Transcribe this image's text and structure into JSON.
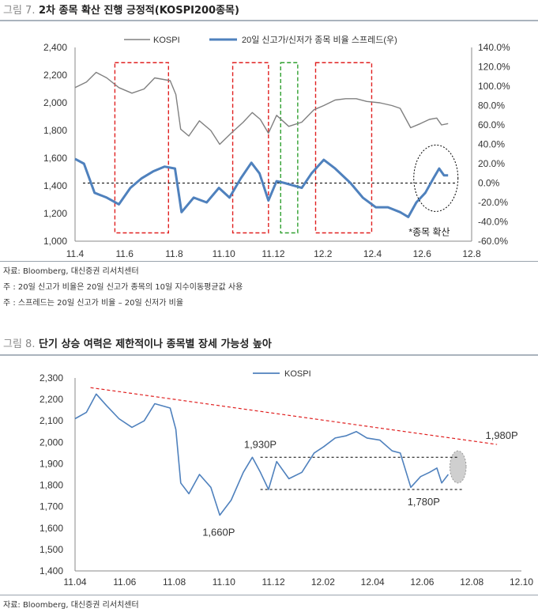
{
  "figure1": {
    "label": "그림 7.",
    "title": "2차 종목 확산 진행 긍정적(KOSPI200종목)",
    "notes": [
      "자료: Bloomberg, 대신증권 리서치센터",
      "주 : 20일 신고가 비율은 20일 신고가 종목의 10일 지수이동평균값 사용",
      "주 : 스프레드는 20일 신고가 비율 – 20일 신저가 비율"
    ]
  },
  "figure2": {
    "label": "그림 8.",
    "title": "단기 상승 여력은 제한적이나 종목별 장세 가능성 높아",
    "notes": [
      "자료: Bloomberg, 대신증권 리서치센터"
    ]
  },
  "chart_data": [
    {
      "type": "line",
      "title": "",
      "x_ticks": [
        "11.4",
        "11.6",
        "11.8",
        "11.10",
        "11.12",
        "12.2",
        "12.4",
        "12.6",
        "12.8"
      ],
      "y_ticks": [
        "1,000",
        "1,200",
        "1,400",
        "1,600",
        "1,800",
        "2,000",
        "2,200",
        "2,400"
      ],
      "y_range": [
        1000,
        2400
      ],
      "y2_ticks": [
        "-60.0%",
        "-40.0%",
        "-20.0%",
        "0.0%",
        "20.0%",
        "40.0%",
        "60.0%",
        "80.0%",
        "100.0%",
        "120.0%",
        "140.0%"
      ],
      "y2_range": [
        -60,
        140
      ],
      "legend_placement": "top",
      "series": [
        {
          "name": "KOSPI",
          "axis": "left",
          "color": "#808080",
          "points": [
            [
              "2011-04-01",
              2110
            ],
            [
              "2011-04-15",
              2150
            ],
            [
              "2011-04-27",
              2220
            ],
            [
              "2011-05-10",
              2180
            ],
            [
              "2011-05-25",
              2110
            ],
            [
              "2011-06-10",
              2070
            ],
            [
              "2011-06-25",
              2100
            ],
            [
              "2011-07-08",
              2180
            ],
            [
              "2011-07-27",
              2160
            ],
            [
              "2011-08-03",
              2060
            ],
            [
              "2011-08-09",
              1810
            ],
            [
              "2011-08-19",
              1760
            ],
            [
              "2011-09-01",
              1870
            ],
            [
              "2011-09-15",
              1800
            ],
            [
              "2011-09-26",
              1700
            ],
            [
              "2011-10-10",
              1780
            ],
            [
              "2011-10-25",
              1860
            ],
            [
              "2011-11-05",
              1930
            ],
            [
              "2011-11-15",
              1880
            ],
            [
              "2011-11-25",
              1780
            ],
            [
              "2011-12-05",
              1910
            ],
            [
              "2011-12-20",
              1830
            ],
            [
              "2012-01-05",
              1860
            ],
            [
              "2012-01-20",
              1950
            ],
            [
              "2012-02-01",
              1980
            ],
            [
              "2012-02-15",
              2020
            ],
            [
              "2012-02-28",
              2030
            ],
            [
              "2012-03-12",
              2030
            ],
            [
              "2012-03-25",
              2010
            ],
            [
              "2012-04-10",
              2000
            ],
            [
              "2012-04-25",
              1980
            ],
            [
              "2012-05-05",
              1960
            ],
            [
              "2012-05-18",
              1820
            ],
            [
              "2012-05-30",
              1850
            ],
            [
              "2012-06-10",
              1880
            ],
            [
              "2012-06-19",
              1890
            ],
            [
              "2012-06-25",
              1840
            ],
            [
              "2012-07-03",
              1850
            ]
          ]
        },
        {
          "name": "20일 신고가/신저가 종목 비율 스프레드(우)",
          "axis": "right",
          "color": "#4f81bd",
          "points": [
            [
              "2011-04-01",
              25
            ],
            [
              "2011-04-12",
              20
            ],
            [
              "2011-04-25",
              -10
            ],
            [
              "2011-05-10",
              -15
            ],
            [
              "2011-05-25",
              -22
            ],
            [
              "2011-06-08",
              -5
            ],
            [
              "2011-06-22",
              5
            ],
            [
              "2011-07-06",
              12
            ],
            [
              "2011-07-20",
              17
            ],
            [
              "2011-08-02",
              15
            ],
            [
              "2011-08-10",
              -30
            ],
            [
              "2011-08-25",
              -15
            ],
            [
              "2011-09-10",
              -20
            ],
            [
              "2011-09-25",
              -5
            ],
            [
              "2011-10-08",
              -15
            ],
            [
              "2011-10-22",
              5
            ],
            [
              "2011-11-04",
              21
            ],
            [
              "2011-11-14",
              10
            ],
            [
              "2011-11-25",
              -18
            ],
            [
              "2011-12-05",
              2
            ],
            [
              "2011-12-15",
              0
            ],
            [
              "2012-01-05",
              -5
            ],
            [
              "2012-01-17",
              10
            ],
            [
              "2012-02-01",
              24
            ],
            [
              "2012-02-15",
              15
            ],
            [
              "2012-03-05",
              0
            ],
            [
              "2012-03-20",
              -15
            ],
            [
              "2012-04-05",
              -25
            ],
            [
              "2012-04-20",
              -25
            ],
            [
              "2012-05-05",
              -30
            ],
            [
              "2012-05-15",
              -35
            ],
            [
              "2012-05-25",
              -20
            ],
            [
              "2012-06-05",
              -10
            ],
            [
              "2012-06-15",
              5
            ],
            [
              "2012-06-22",
              15
            ],
            [
              "2012-06-28",
              8
            ],
            [
              "2012-07-03",
              8
            ]
          ]
        }
      ],
      "reference_lines": [
        {
          "axis": "right",
          "value": 0,
          "style": "dashed"
        }
      ],
      "highlight_boxes": [
        {
          "from": "2011-05-20",
          "to": "2011-07-25",
          "color": "#e02020"
        },
        {
          "from": "2011-10-12",
          "to": "2011-11-25",
          "color": "#e02020"
        },
        {
          "from": "2011-12-10",
          "to": "2011-12-31",
          "color": "#30a030"
        },
        {
          "from": "2012-01-22",
          "to": "2012-03-31",
          "color": "#e02020"
        }
      ],
      "annotations": [
        {
          "text": "*종목 확산",
          "note": "dotted ellipse around recent spread rise"
        }
      ]
    },
    {
      "type": "line",
      "title": "",
      "x_ticks": [
        "11.04",
        "11.06",
        "11.08",
        "11.10",
        "11.12",
        "12.02",
        "12.04",
        "12.06",
        "12.08",
        "12.10"
      ],
      "y_ticks": [
        "1,400",
        "1,500",
        "1,600",
        "1,700",
        "1,800",
        "1,900",
        "2,000",
        "2,100",
        "2,200",
        "2,300"
      ],
      "y_range": [
        1400,
        2300
      ],
      "legend_placement": "top",
      "series": [
        {
          "name": "KOSPI",
          "color": "#4f81bd",
          "points": [
            [
              "2011-04-01",
              2110
            ],
            [
              "2011-04-15",
              2140
            ],
            [
              "2011-04-27",
              2225
            ],
            [
              "2011-05-10",
              2170
            ],
            [
              "2011-05-25",
              2110
            ],
            [
              "2011-06-10",
              2070
            ],
            [
              "2011-06-25",
              2100
            ],
            [
              "2011-07-08",
              2180
            ],
            [
              "2011-07-27",
              2160
            ],
            [
              "2011-08-03",
              2060
            ],
            [
              "2011-08-09",
              1810
            ],
            [
              "2011-08-19",
              1760
            ],
            [
              "2011-09-01",
              1850
            ],
            [
              "2011-09-15",
              1790
            ],
            [
              "2011-09-26",
              1660
            ],
            [
              "2011-10-10",
              1730
            ],
            [
              "2011-10-25",
              1860
            ],
            [
              "2011-11-05",
              1930
            ],
            [
              "2011-11-15",
              1860
            ],
            [
              "2011-11-25",
              1780
            ],
            [
              "2011-12-05",
              1910
            ],
            [
              "2011-12-20",
              1830
            ],
            [
              "2012-01-05",
              1860
            ],
            [
              "2012-01-20",
              1950
            ],
            [
              "2012-02-01",
              1980
            ],
            [
              "2012-02-15",
              2020
            ],
            [
              "2012-02-28",
              2030
            ],
            [
              "2012-03-12",
              2050
            ],
            [
              "2012-03-25",
              2020
            ],
            [
              "2012-04-10",
              2010
            ],
            [
              "2012-04-25",
              1960
            ],
            [
              "2012-05-05",
              1950
            ],
            [
              "2012-05-18",
              1790
            ],
            [
              "2012-05-30",
              1840
            ],
            [
              "2012-06-10",
              1860
            ],
            [
              "2012-06-19",
              1880
            ],
            [
              "2012-06-25",
              1810
            ],
            [
              "2012-07-03",
              1850
            ]
          ]
        }
      ],
      "trend_line": {
        "from": [
          "2011-04-20",
          2255
        ],
        "to": [
          "2012-09-01",
          1990
        ],
        "color": "#e02020",
        "style": "dashed"
      },
      "reference_lines": [
        {
          "value": 1930,
          "style": "dashed"
        },
        {
          "value": 1780,
          "style": "dashed"
        }
      ],
      "labels": [
        "1,980P",
        "1,930P",
        "1,780P",
        "1,660P"
      ],
      "label_points": [
        [
          "2012-08-10",
          1980
        ],
        [
          "2011-11-22",
          1930
        ],
        [
          "2012-06-10",
          1780
        ],
        [
          "2011-09-26",
          1660
        ]
      ],
      "highlight_ellipse": {
        "from": "2012-07-05",
        "to": "2012-07-25",
        "low": 1810,
        "high": 1960
      }
    }
  ]
}
